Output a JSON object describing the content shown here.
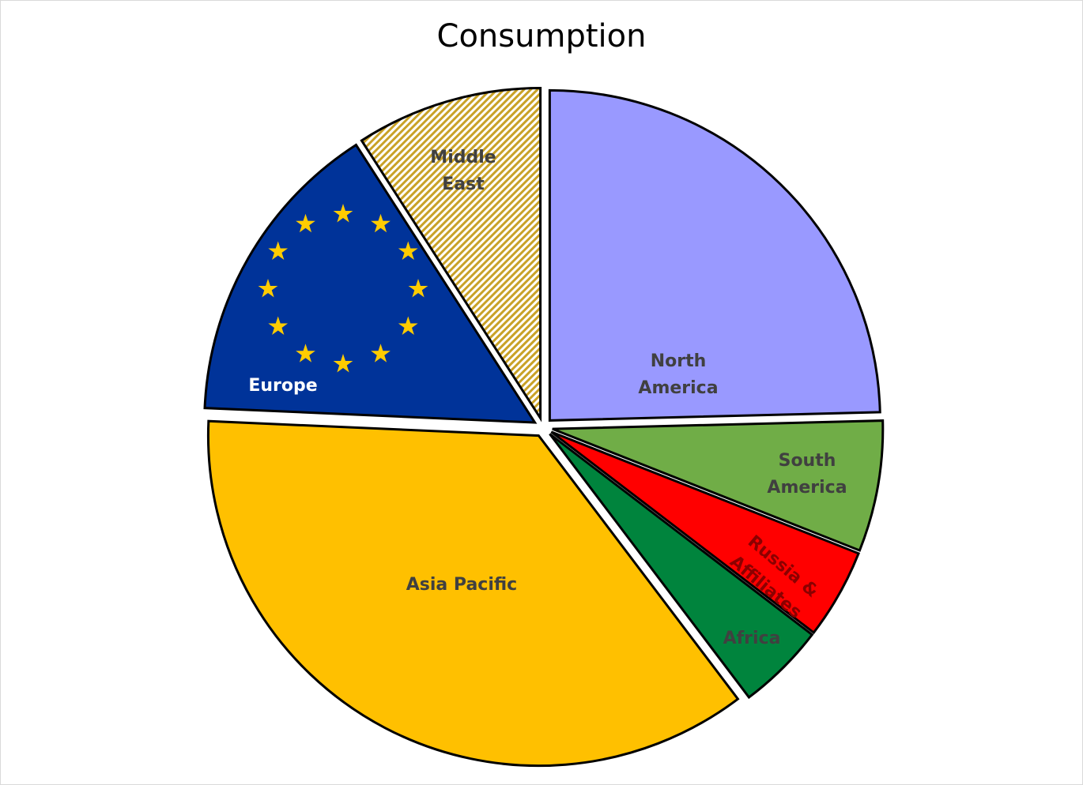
{
  "chart_data": {
    "type": "pie",
    "title": "Consumption",
    "categories": [
      "North America",
      "South America",
      "Russia & Affiliates",
      "Africa",
      "Asia Pacific",
      "Europe",
      "Middle East"
    ],
    "values": [
      24.6,
      6.4,
      4.4,
      4.3,
      36,
      15.2,
      9.1
    ],
    "colors": [
      "#9999ff",
      "#70ad47",
      "#ff0000",
      "#00843d",
      "#ffc000",
      "#003399",
      "#c9a227"
    ]
  }
}
